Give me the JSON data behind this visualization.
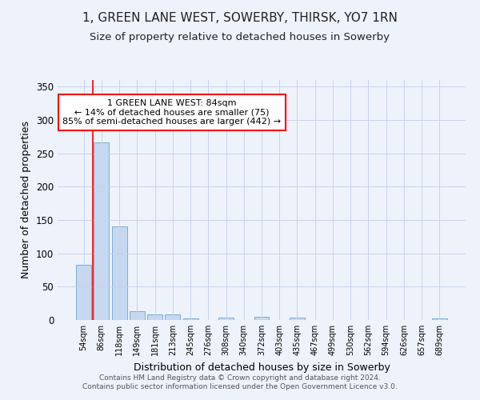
{
  "title": "1, GREEN LANE WEST, SOWERBY, THIRSK, YO7 1RN",
  "subtitle": "Size of property relative to detached houses in Sowerby",
  "xlabel": "Distribution of detached houses by size in Sowerby",
  "ylabel": "Number of detached properties",
  "bar_labels": [
    "54sqm",
    "86sqm",
    "118sqm",
    "149sqm",
    "181sqm",
    "213sqm",
    "245sqm",
    "276sqm",
    "308sqm",
    "340sqm",
    "372sqm",
    "403sqm",
    "435sqm",
    "467sqm",
    "499sqm",
    "530sqm",
    "562sqm",
    "594sqm",
    "626sqm",
    "657sqm",
    "689sqm"
  ],
  "bar_heights": [
    83,
    266,
    141,
    13,
    8,
    9,
    3,
    0,
    4,
    0,
    5,
    0,
    4,
    0,
    0,
    0,
    0,
    0,
    0,
    0,
    3
  ],
  "bar_color": "#c5d8f0",
  "bar_edge_color": "#7aadd4",
  "red_line_x": 0.5,
  "annotation_text": "1 GREEN LANE WEST: 84sqm\n← 14% of detached houses are smaller (75)\n85% of semi-detached houses are larger (442) →",
  "annotation_box_color": "white",
  "annotation_box_edge_color": "red",
  "red_line_color": "red",
  "ylim": [
    0,
    360
  ],
  "yticks": [
    0,
    50,
    100,
    150,
    200,
    250,
    300,
    350
  ],
  "footer_line1": "Contains HM Land Registry data © Crown copyright and database right 2024.",
  "footer_line2": "Contains public sector information licensed under the Open Government Licence v3.0.",
  "bg_color": "#eef2fb",
  "grid_color": "#c8d4e8",
  "title_fontsize": 11,
  "subtitle_fontsize": 9.5,
  "ylabel_fontsize": 9,
  "xlabel_fontsize": 9,
  "annot_fontsize": 8,
  "footer_fontsize": 6.5
}
